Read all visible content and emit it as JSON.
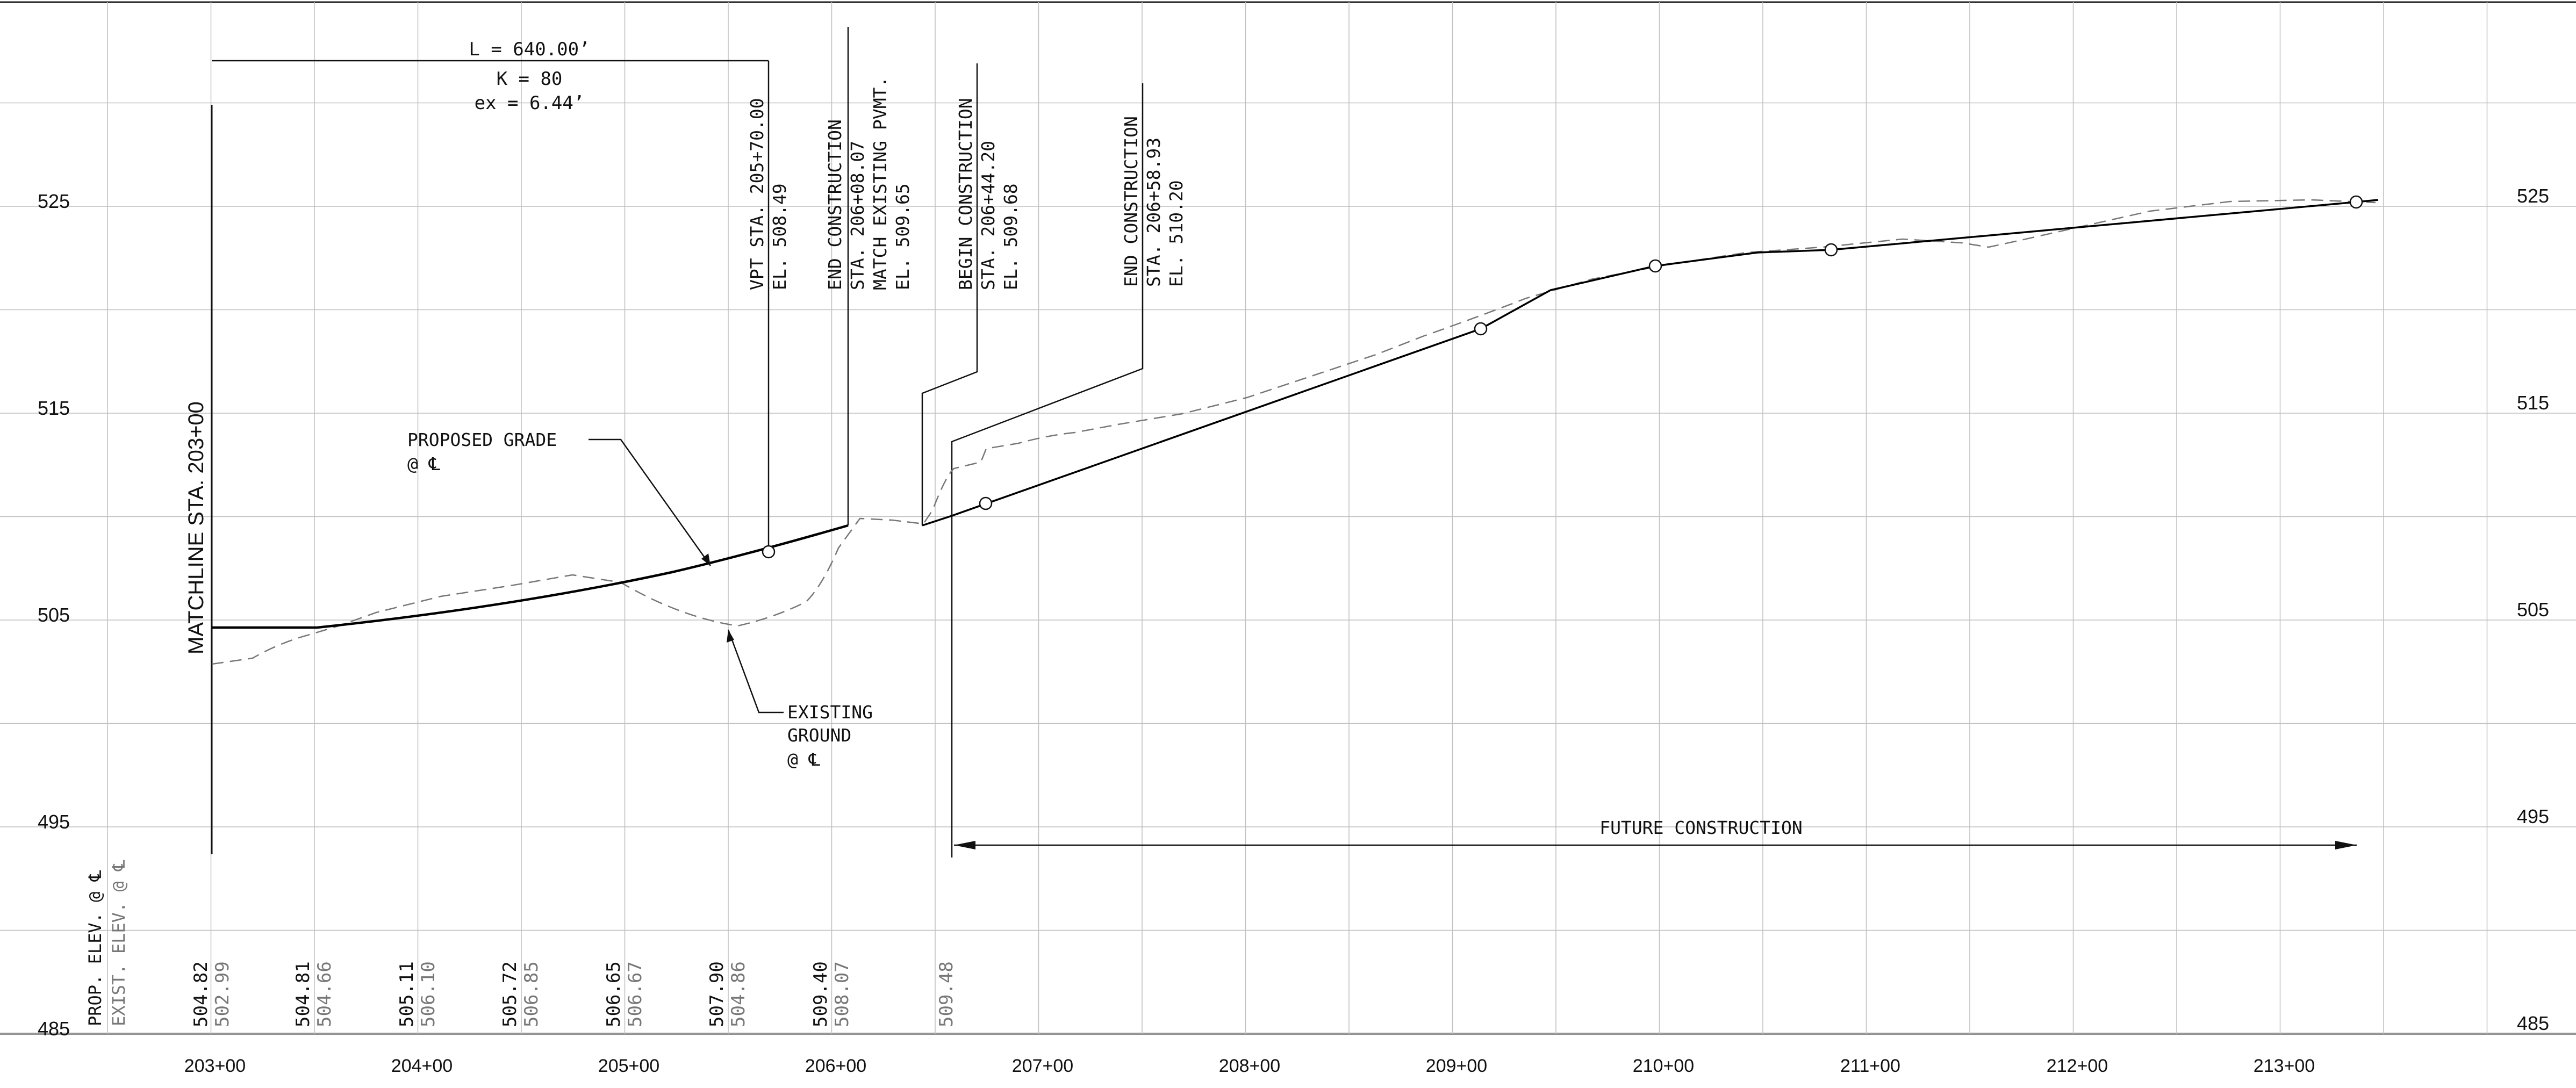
{
  "elevations_left": [
    "525",
    "515",
    "505",
    "495",
    "485"
  ],
  "elevations_right": [
    "525",
    "515",
    "505",
    "495",
    "485"
  ],
  "stations": [
    "203+00",
    "204+00",
    "205+00",
    "206+00",
    "207+00",
    "208+00",
    "209+00",
    "210+00",
    "211+00",
    "212+00",
    "213+00"
  ],
  "matchline": "MATCHLINE STA. 203+00",
  "curve": {
    "l": "L = 640.00’",
    "k": "K = 80",
    "ex": "ex = 6.44’"
  },
  "vpt": {
    "line1": "VPT STA. 205+70.00",
    "line2": "EL. 508.49"
  },
  "end_construction_1": {
    "line1": "END CONSTRUCTION",
    "line2": "STA. 206+08.07",
    "line3": "MATCH EXISTING  PVMT.",
    "line4": "EL. 509.65"
  },
  "begin_construction": {
    "line1": "BEGIN CONSTRUCTION",
    "line2": "STA. 206+44.20",
    "line3": "EL. 509.68"
  },
  "end_construction_2": {
    "line1": "END CONSTRUCTION",
    "line2": "STA. 206+58.93",
    "line3": "EL. 510.20"
  },
  "proposed_grade": {
    "line1": "PROPOSED GRADE",
    "line2": "@ ℄"
  },
  "existing_ground": {
    "line1": "EXISTING",
    "line2": "GROUND",
    "line3": "@ ℄"
  },
  "future_construction": "FUTURE CONSTRUCTION",
  "row_labels": {
    "prop": "PROP. ELEV. @ ℄",
    "exist": "EXIST. ELEV. @ ℄"
  },
  "elevation_table": [
    {
      "prop": "504.82",
      "exist": "502.99"
    },
    {
      "prop": "504.81",
      "exist": "504.66"
    },
    {
      "prop": "505.11",
      "exist": "506.10"
    },
    {
      "prop": "505.72",
      "exist": "506.85"
    },
    {
      "prop": "506.65",
      "exist": "506.67"
    },
    {
      "prop": "507.90",
      "exist": "504.86"
    },
    {
      "prop": "509.40",
      "exist": "508.07"
    },
    {
      "prop": "",
      "exist": "509.48"
    }
  ],
  "colors": {
    "proposed": "#000000",
    "existing": "#777777",
    "grid": "#bfbfbf"
  }
}
